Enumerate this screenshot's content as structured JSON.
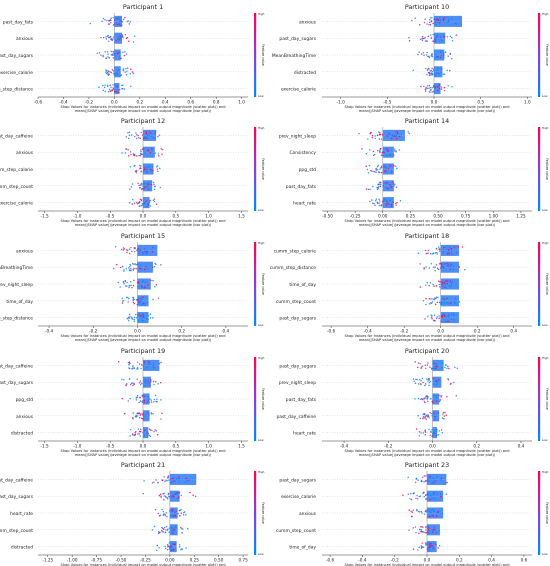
{
  "figure": {
    "xlabel_line1": "Shap Values for instances (individual impact on model output magnitude (scatter plot)) and",
    "xlabel_line2": "mean(|SHAP value|)(average impact on model output magnitude (bar plot))",
    "colorbar_label": "Feature value",
    "colorbar_high": "High",
    "colorbar_low": "Low",
    "colors": {
      "high": "#ff0052",
      "low": "#008bfb",
      "bar": "#3b82f6",
      "axis": "#333333",
      "text": "#222222"
    }
  },
  "chart_data": [
    {
      "type": "bar",
      "title": "Participant 1",
      "features": [
        "past_day_fats",
        "anxious",
        "past_day_sugars",
        "exercise_calorie",
        "currm_step_distance"
      ],
      "values": [
        0.06,
        0.06,
        0.05,
        0.05,
        0.04
      ],
      "xticks": [
        "-0.6",
        "-0.4",
        "-0.2",
        "0.0",
        "0.2",
        "0.4",
        "0.6",
        "0.8",
        "1.0"
      ],
      "xlim": [
        -0.6,
        1.05
      ]
    },
    {
      "type": "bar",
      "title": "Participant 10",
      "features": [
        "anxious",
        "past_day_sugars",
        "MeanBreathingTime",
        "distracted",
        "exercise_calorie"
      ],
      "values": [
        0.3,
        0.12,
        0.11,
        0.09,
        0.07
      ],
      "xticks": [
        "-1.0",
        "-0.5",
        "0.0",
        "0.5",
        "1.0"
      ],
      "xlim": [
        -1.2,
        1.05
      ]
    },
    {
      "type": "bar",
      "title": "Participant 12",
      "features": [
        "past_day_caffeine",
        "anxious",
        "cumm_step_calorie",
        "cumm_step_count",
        "exercise_calorie"
      ],
      "values": [
        0.2,
        0.18,
        0.16,
        0.14,
        0.1
      ],
      "xticks": [
        "-1.5",
        "-1.0",
        "-0.5",
        "0.0",
        "0.5",
        "1.0",
        "1.5"
      ],
      "xlim": [
        -1.6,
        1.6
      ]
    },
    {
      "type": "bar",
      "title": "Participant 14",
      "features": [
        "prev_night_sleep",
        "Consistency",
        "ppg_std",
        "past_day_fats",
        "heart_rate"
      ],
      "values": [
        0.2,
        0.1,
        0.1,
        0.1,
        0.1
      ],
      "xticks": [
        "-0.50",
        "-0.25",
        "0.00",
        "0.25",
        "0.50",
        "0.75",
        "1.00",
        "1.25"
      ],
      "xlim": [
        -0.55,
        1.35
      ]
    },
    {
      "type": "bar",
      "title": "Participant 15",
      "features": [
        "anxious",
        "MeanBreathingTime",
        "prev_night_sleep",
        "time_of_day",
        "cumm_step_distance"
      ],
      "values": [
        0.09,
        0.07,
        0.06,
        0.05,
        0.05
      ],
      "xticks": [
        "-0.4",
        "-0.2",
        "0.0",
        "0.2",
        "0.4"
      ],
      "xlim": [
        -0.45,
        0.5
      ]
    },
    {
      "type": "bar",
      "title": "Participant 18",
      "features": [
        "cumm_step_calorie",
        "cumm_step_distance",
        "time_of_day",
        "cumm_step_count",
        "past_day_sugars"
      ],
      "values": [
        0.1,
        0.1,
        0.1,
        0.1,
        0.1
      ],
      "xticks": [
        "-0.6",
        "-0.4",
        "-0.2",
        "0.0",
        "0.2",
        "0.4"
      ],
      "xlim": [
        -0.65,
        0.5
      ]
    },
    {
      "type": "bar",
      "title": "Participant 19",
      "features": [
        "past_day_caffeine",
        "past_day_sugars",
        "ppg_std",
        "anxious",
        "distracted"
      ],
      "values": [
        0.25,
        0.12,
        0.1,
        0.1,
        0.08
      ],
      "xticks": [
        "-1.5",
        "-1.0",
        "-0.5",
        "0.0",
        "0.5",
        "1.0",
        "1.5"
      ],
      "xlim": [
        -1.6,
        1.6
      ]
    },
    {
      "type": "bar",
      "title": "Participant 20",
      "features": [
        "past_day_sugars",
        "prev_night_sleep",
        "past_day_fats",
        "past_day_caffeine",
        "heart_rate"
      ],
      "values": [
        0.05,
        0.04,
        0.03,
        0.03,
        0.02
      ],
      "xticks": [
        "-0.4",
        "-0.2",
        "0.0",
        "0.2",
        "0.4"
      ],
      "xlim": [
        -0.5,
        0.45
      ]
    },
    {
      "type": "bar",
      "title": "Participant 21",
      "features": [
        "past_day_caffeine",
        "past_day_sugars",
        "heart_rate",
        "cumm_step_count",
        "distracted"
      ],
      "values": [
        0.27,
        0.1,
        0.08,
        0.08,
        0.07
      ],
      "xticks": [
        "-1.25",
        "-1.00",
        "-0.75",
        "-0.50",
        "-0.25",
        "0.00",
        "0.25",
        "0.50",
        "0.75"
      ],
      "xlim": [
        -1.35,
        0.8
      ]
    },
    {
      "type": "bar",
      "title": "Participant 23",
      "features": [
        "past_day_sugars",
        "exercise_calorie",
        "anxious",
        "cumm_step_count",
        "time_of_day"
      ],
      "values": [
        0.12,
        0.1,
        0.1,
        0.08,
        0.06
      ],
      "xticks": [
        "-0.6",
        "-0.4",
        "-0.2",
        "0.0",
        "0.2",
        "0.4",
        "0.6"
      ],
      "xlim": [
        -0.65,
        0.65
      ]
    }
  ]
}
